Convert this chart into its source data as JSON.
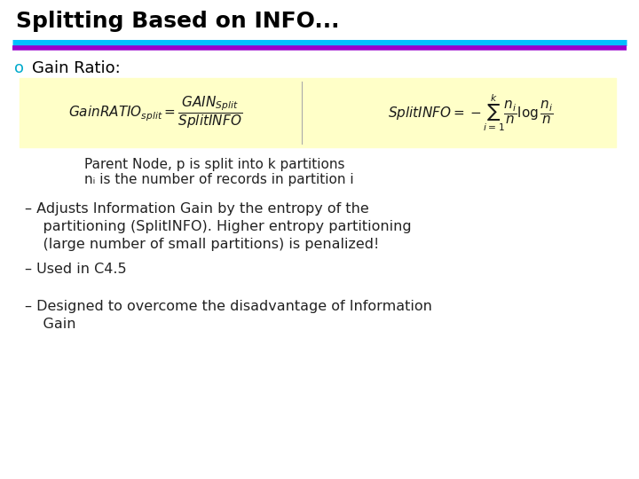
{
  "title": "Splitting Based on INFO...",
  "title_color": "#000000",
  "title_fontsize": 18,
  "line1_color": "#00BFFF",
  "line2_color": "#9900CC",
  "bullet_label": "o",
  "bullet_color": "#00AACC",
  "gain_ratio_label": "Gain Ratio:",
  "formula_box_color": "#FFFFC8",
  "note1": "Parent Node, p is split into k partitions",
  "note2": "nᵢ is the number of records in partition i",
  "bullet_items": [
    "– Adjusts Information Gain by the entropy of the\n    partitioning (SplitINFO). Higher entropy partitioning\n    (large number of small partitions) is penalized!",
    "– Used in C4.5",
    "– Designed to overcome the disadvantage of Information\n    Gain"
  ],
  "bullet_fontsize": 11.5,
  "note_fontsize": 11,
  "bg_color": "#FFFFFF",
  "text_color": "#222222"
}
